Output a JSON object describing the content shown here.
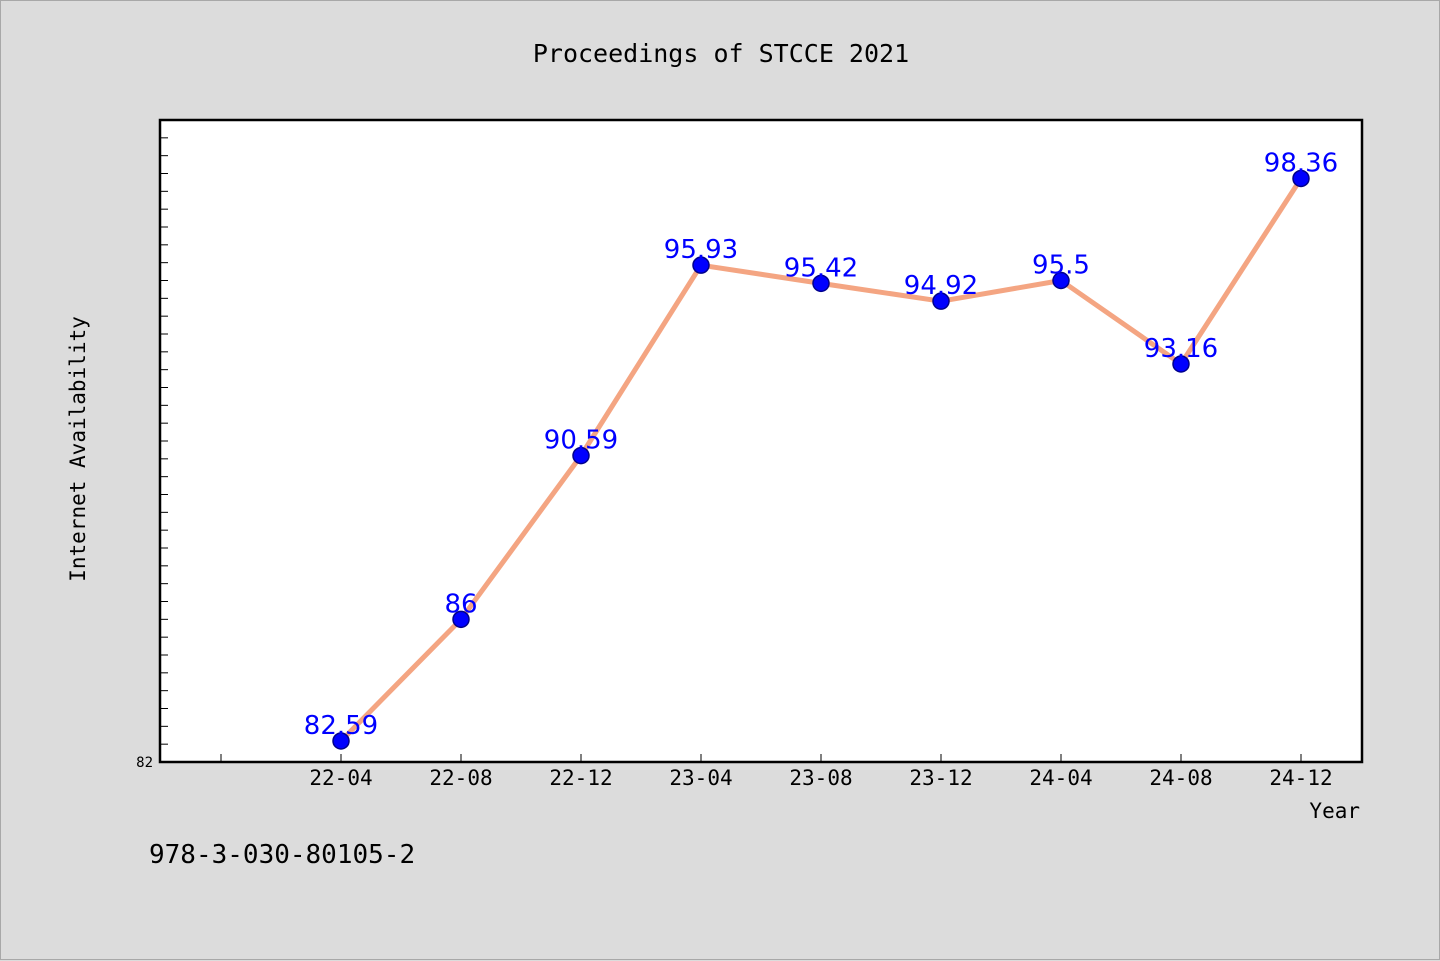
{
  "footer": {
    "isbn": "978-3-030-80105-2"
  },
  "colors": {
    "background": "#dcdcdc",
    "plot_background": "#ffffff",
    "line": "#f4a582",
    "marker": "#0000ff",
    "marker_edge": "#00008b",
    "data_label": "#0000ff"
  },
  "chart_data": {
    "type": "line",
    "title": "Proceedings of STCCE 2021",
    "xlabel": "Year",
    "ylabel": "Internet Availability",
    "y_min_label": "82",
    "ylim": [
      82,
      100
    ],
    "grid": false,
    "legend": "none",
    "categories": [
      "22-04",
      "22-08",
      "22-12",
      "23-04",
      "23-08",
      "23-12",
      "24-04",
      "24-08",
      "24-12"
    ],
    "series": [
      {
        "values": [
          82.59,
          86,
          90.59,
          95.93,
          95.42,
          94.92,
          95.5,
          93.16,
          98.36
        ],
        "labels": [
          "82.59",
          "86",
          "90.59",
          "95.93",
          "95.42",
          "94.92",
          "95.5",
          "93.16",
          "98.36"
        ]
      }
    ]
  }
}
